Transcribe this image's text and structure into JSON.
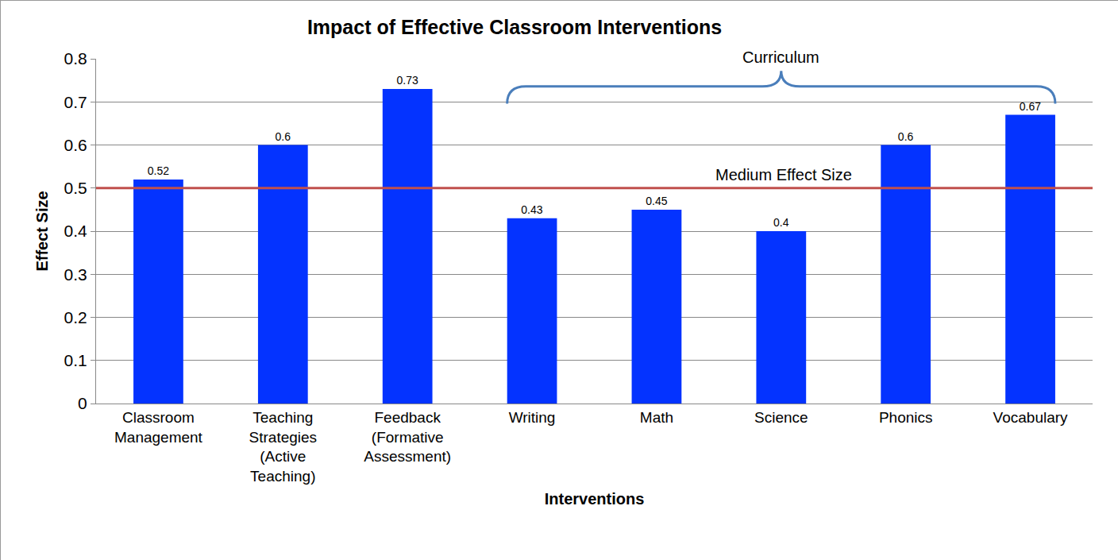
{
  "chart_data": {
    "type": "bar",
    "title": "Impact of Effective Classroom Interventions",
    "x_label": "Interventions",
    "y_label": "Effect Size",
    "categories": [
      "Classroom Management",
      "Teaching Strategies (Active Teaching)",
      "Feedback (Formative Assessment)",
      "Writing",
      "Math",
      "Science",
      "Phonics",
      "Vocabulary"
    ],
    "values": [
      0.52,
      0.6,
      0.73,
      0.43,
      0.45,
      0.4,
      0.6,
      0.67
    ],
    "color": "#0433ff",
    "ylim": [
      0,
      0.8
    ],
    "yticks": [
      0,
      0.1,
      0.2,
      0.3,
      0.4,
      0.5,
      0.6,
      0.7,
      0.8
    ],
    "grid": true,
    "data_labels": true,
    "annotations": [
      {
        "type": "hline",
        "y": 0.5,
        "text": "Medium Effect Size",
        "color": "#c0504d"
      },
      {
        "type": "bracket",
        "from": "Writing",
        "to": "Vocabulary",
        "text": "Curriculum",
        "color": "#4a7ebb"
      }
    ]
  }
}
